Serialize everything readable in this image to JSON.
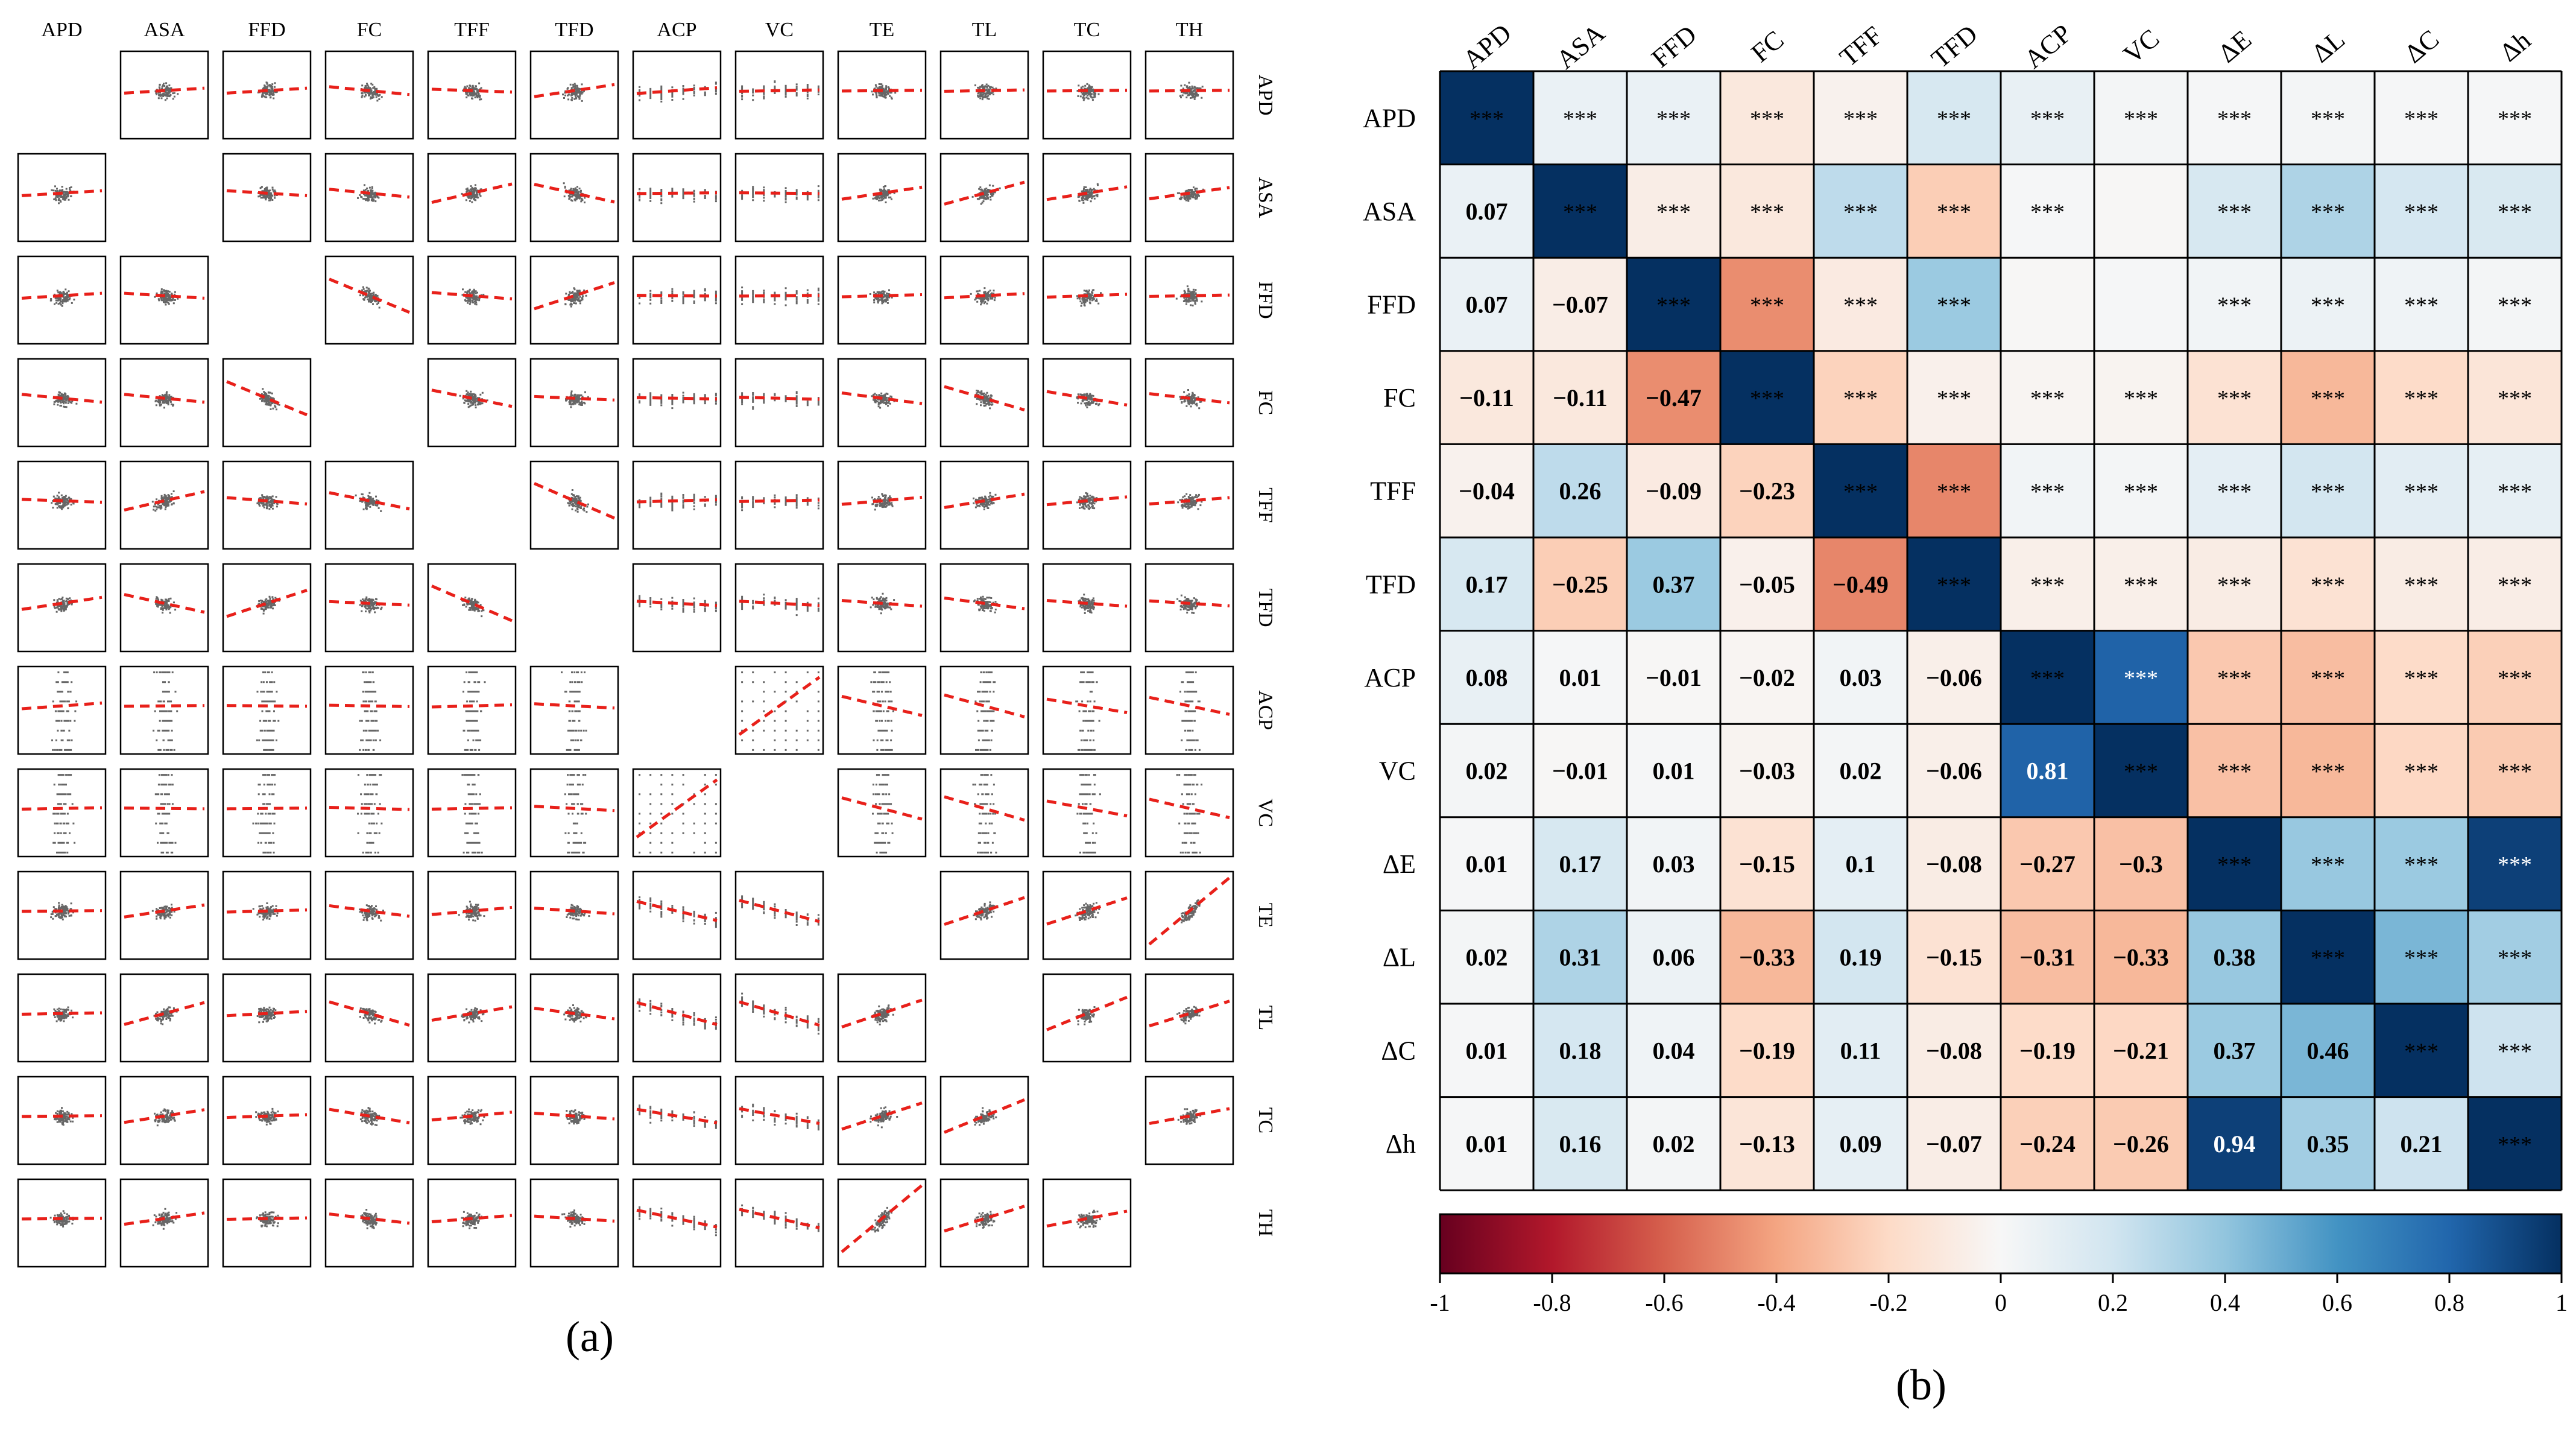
{
  "panel_a_label": "(a)",
  "panel_b_label": "(b)",
  "significance_mark": "***",
  "colors": {
    "scatter_points": "#333333",
    "trend_line": "#e8201a",
    "colorbar_stops": [
      "#67001f",
      "#b2182b",
      "#d6604d",
      "#f4a582",
      "#fddbc7",
      "#f7f7f7",
      "#d1e5f0",
      "#92c5de",
      "#4393c3",
      "#2166ac",
      "#053061"
    ]
  },
  "chart_data": [
    {
      "type": "scatter",
      "title": "(a)",
      "variables": [
        "APD",
        "ASA",
        "FFD",
        "FC",
        "TFF",
        "TFD",
        "ACP",
        "VC",
        "TE",
        "TL",
        "TC",
        "TH"
      ],
      "layout": "scatter-plot matrix with red dashed linear fit in each off-diagonal cell; diagonal cells empty"
    },
    {
      "type": "heatmap",
      "title": "(b)",
      "col_labels": [
        "APD",
        "ASA",
        "FFD",
        "FC",
        "TFF",
        "TFD",
        "ACP",
        "VC",
        "ΔE",
        "ΔL",
        "ΔC",
        "Δh"
      ],
      "row_labels": [
        "APD",
        "ASA",
        "FFD",
        "FC",
        "TFF",
        "TFD",
        "ACP",
        "VC",
        "ΔE",
        "ΔL",
        "ΔC",
        "Δh"
      ],
      "lower_triangle_values": [
        [],
        [
          0.07
        ],
        [
          0.07,
          -0.07
        ],
        [
          -0.11,
          -0.11,
          -0.47
        ],
        [
          -0.04,
          0.26,
          -0.09,
          -0.23
        ],
        [
          0.17,
          -0.25,
          0.37,
          -0.05,
          -0.49
        ],
        [
          0.08,
          0.01,
          -0.01,
          -0.02,
          0.03,
          -0.06
        ],
        [
          0.02,
          -0.01,
          0.01,
          -0.03,
          0.02,
          -0.06,
          0.81
        ],
        [
          0.01,
          0.17,
          0.03,
          -0.15,
          0.1,
          -0.08,
          -0.27,
          -0.3
        ],
        [
          0.02,
          0.31,
          0.06,
          -0.33,
          0.19,
          -0.15,
          -0.31,
          -0.33,
          0.38
        ],
        [
          0.01,
          0.18,
          0.04,
          -0.19,
          0.11,
          -0.08,
          -0.19,
          -0.21,
          0.37,
          0.46
        ],
        [
          0.01,
          0.16,
          0.02,
          -0.13,
          0.09,
          -0.07,
          -0.24,
          -0.26,
          0.94,
          0.35,
          0.21
        ]
      ],
      "non_significant_upper_cells": [
        [
          1,
          7
        ],
        [
          2,
          7
        ],
        [
          2,
          6
        ]
      ],
      "colorbar": {
        "range": [
          -1,
          1
        ],
        "tick_labels": [
          "-1",
          "-0.8",
          "-0.6",
          "-0.4",
          "-0.2",
          "0",
          "0.2",
          "0.4",
          "0.6",
          "0.8",
          "1"
        ]
      }
    }
  ]
}
